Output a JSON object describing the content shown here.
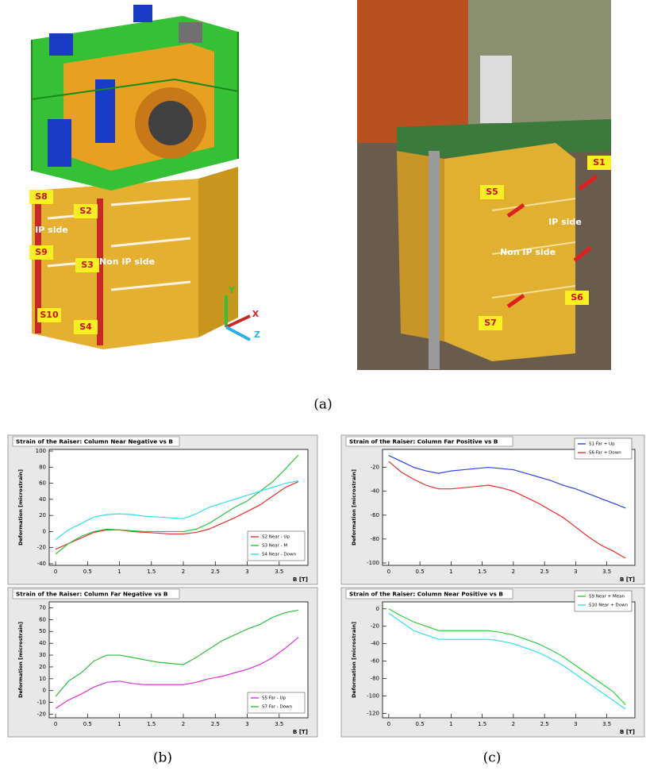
{
  "figure": {
    "cad_labels": [
      "S8",
      "S2",
      "IP side",
      "S9",
      "S3",
      "Non IP side",
      "S10",
      "S4"
    ],
    "cad_axes": [
      "Y",
      "X",
      "Z"
    ],
    "photo_labels": [
      "S1",
      "S5",
      "IP side",
      "Non IP side",
      "S6",
      "S7"
    ],
    "captions": [
      "(a)",
      "(b)",
      "(c)"
    ]
  },
  "chart_data": [
    {
      "type": "line",
      "title": "Strain of the Raiser: Column Near Negative vs B",
      "xlabel": "B [T]",
      "ylabel": "Deformation [microstrain]",
      "x": [
        0,
        0.2,
        0.4,
        0.6,
        0.8,
        1,
        1.2,
        1.4,
        1.6,
        1.8,
        2,
        2.2,
        2.4,
        2.6,
        2.8,
        3,
        3.2,
        3.4,
        3.6,
        3.8
      ],
      "series": [
        {
          "name": "S2 Near - Up",
          "color": "#e8302a",
          "values": [
            -22,
            -15,
            -8,
            -1,
            2,
            2,
            0,
            -1,
            -2,
            -3,
            -3,
            -1,
            3,
            10,
            17,
            25,
            33,
            44,
            55,
            62
          ]
        },
        {
          "name": "S3 Near - M",
          "color": "#30c040",
          "values": [
            -28,
            -15,
            -6,
            0,
            3,
            2,
            1,
            0,
            0,
            0,
            0,
            3,
            10,
            20,
            30,
            38,
            50,
            62,
            78,
            95
          ]
        },
        {
          "name": "S4 Near - Down",
          "color": "#30e0e8",
          "values": [
            -10,
            2,
            10,
            18,
            21,
            22,
            21,
            19,
            18,
            17,
            16,
            22,
            30,
            35,
            40,
            45,
            50,
            55,
            60,
            63
          ]
        }
      ],
      "xlim": [
        -0.1,
        3.95
      ],
      "xticks": [
        0,
        0.5,
        1,
        1.5,
        2,
        2.5,
        3,
        3.5
      ],
      "ylim": [
        -42,
        102
      ],
      "yticks": [
        -40,
        -20,
        0,
        20,
        40,
        60,
        80,
        100
      ],
      "legend": "lower right"
    },
    {
      "type": "line",
      "title": "Strain of the Raiser: Column Far Negative vs B",
      "xlabel": "B [T]",
      "ylabel": "Deformation [microstrain]",
      "x": [
        0,
        0.2,
        0.4,
        0.6,
        0.8,
        1,
        1.2,
        1.4,
        1.6,
        1.8,
        2,
        2.2,
        2.4,
        2.6,
        2.8,
        3,
        3.2,
        3.4,
        3.6,
        3.8
      ],
      "series": [
        {
          "name": "S5 Far - Up",
          "color": "#e030e0",
          "values": [
            -15,
            -8,
            -3,
            3,
            7,
            8,
            6,
            5,
            5,
            5,
            5,
            7,
            10,
            12,
            15,
            18,
            22,
            28,
            36,
            45
          ]
        },
        {
          "name": "S7 Far - Down",
          "color": "#30c040",
          "values": [
            -5,
            8,
            15,
            25,
            30,
            30,
            28,
            26,
            24,
            23,
            22,
            28,
            35,
            42,
            47,
            52,
            56,
            62,
            66,
            68
          ]
        }
      ],
      "xlim": [
        -0.1,
        3.95
      ],
      "xticks": [
        0,
        0.5,
        1,
        1.5,
        2,
        2.5,
        3,
        3.5
      ],
      "ylim": [
        -23,
        75
      ],
      "yticks": [
        -20,
        -10,
        0,
        10,
        20,
        30,
        40,
        50,
        60,
        70
      ],
      "legend": "lower right"
    },
    {
      "type": "line",
      "title": "Strain of the Raiser: Column Far Positive vs B",
      "xlabel": "B [T]",
      "ylabel": "Deformation [microstrain]",
      "x": [
        0,
        0.2,
        0.4,
        0.6,
        0.8,
        1,
        1.2,
        1.4,
        1.6,
        1.8,
        2,
        2.2,
        2.4,
        2.6,
        2.8,
        3,
        3.2,
        3.4,
        3.6,
        3.8
      ],
      "series": [
        {
          "name": "S1 Far + Up",
          "color": "#3040e0",
          "values": [
            -10,
            -15,
            -20,
            -23,
            -25,
            -23,
            -22,
            -21,
            -20,
            -21,
            -22,
            -25,
            -28,
            -31,
            -35,
            -38,
            -42,
            -46,
            -50,
            -54
          ]
        },
        {
          "name": "S6 Far + Down",
          "color": "#e8302a",
          "values": [
            -15,
            -24,
            -30,
            -35,
            -38,
            -38,
            -37,
            -36,
            -35,
            -37,
            -40,
            -45,
            -50,
            -56,
            -62,
            -70,
            -78,
            -85,
            -90,
            -96
          ]
        }
      ],
      "xlim": [
        -0.1,
        3.95
      ],
      "xticks": [
        0,
        0.5,
        1,
        1.5,
        2,
        2.5,
        3,
        3.5
      ],
      "ylim": [
        -102,
        -5
      ],
      "yticks": [
        -100,
        -80,
        -60,
        -40,
        -20
      ],
      "legend": "upper right"
    },
    {
      "type": "line",
      "title": "Strain of the Raiser: Column Near Positive vs B",
      "xlabel": "B [T]",
      "ylabel": "Deformation [microstrain]",
      "x": [
        0,
        0.2,
        0.4,
        0.6,
        0.8,
        1,
        1.2,
        1.4,
        1.6,
        1.8,
        2,
        2.2,
        2.4,
        2.6,
        2.8,
        3,
        3.2,
        3.4,
        3.6,
        3.8
      ],
      "series": [
        {
          "name": "S9 Near + Mean",
          "color": "#30d040",
          "values": [
            0,
            -8,
            -15,
            -20,
            -25,
            -25,
            -25,
            -25,
            -25,
            -27,
            -30,
            -35,
            -40,
            -47,
            -55,
            -65,
            -75,
            -85,
            -95,
            -110
          ]
        },
        {
          "name": "S10 Near + Down",
          "color": "#30e0e8",
          "values": [
            -5,
            -15,
            -25,
            -30,
            -35,
            -35,
            -35,
            -35,
            -35,
            -37,
            -40,
            -45,
            -50,
            -57,
            -65,
            -75,
            -85,
            -95,
            -105,
            -115
          ]
        }
      ],
      "xlim": [
        -0.1,
        3.95
      ],
      "xticks": [
        0,
        0.5,
        1,
        1.5,
        2,
        2.5,
        3,
        3.5
      ],
      "ylim": [
        -125,
        8
      ],
      "yticks": [
        -120,
        -100,
        -80,
        -60,
        -40,
        -20,
        0
      ],
      "legend": "upper right"
    }
  ]
}
